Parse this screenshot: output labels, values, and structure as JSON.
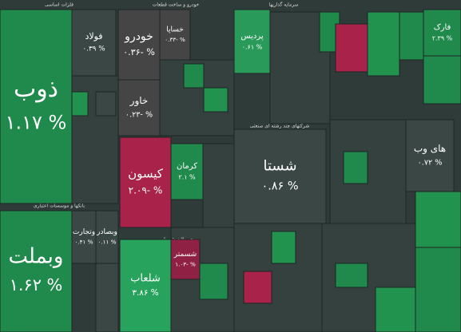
{
  "chart_data": {
    "type": "treemap",
    "groups": [
      "فلزات اساسی",
      "خودرو و ساخت قطعات",
      "بانکها و موسسات اعتباری",
      "شرکتهای چند رشته ای صنعتی",
      "محصولات شیمیایی",
      "سرمایه گذاریها"
    ],
    "tiles": [
      {
        "name": "ذوب",
        "values": 1.17,
        "value_labels": "۱.۱۷ %",
        "color": "#1f8a4c"
      },
      {
        "name": "فولاد",
        "values": 0.39,
        "value_labels": "۰.۳۹ %",
        "color": "#3b4744"
      },
      {
        "name": "وبملت",
        "values": 1.62,
        "value_labels": "۱.۶۲ %",
        "color": "#1f8a4c"
      },
      {
        "name": "وتجارت",
        "values": 0.41,
        "value_labels": "۰.۴۱ %",
        "color": "#3b4744"
      },
      {
        "name": "وبصادر",
        "values": 0.11,
        "value_labels": "۰.۱۱ %",
        "color": "#3b4744"
      },
      {
        "name": "خودرو",
        "values": -0.36,
        "value_labels": "۰.۳۶- %",
        "color": "#454545"
      },
      {
        "name": "خساپا",
        "values": -0.33,
        "value_labels": "۰.۳۳- %",
        "color": "#454545"
      },
      {
        "name": "خاور",
        "values": -0.23,
        "value_labels": "۰.۲۳- %",
        "color": "#454545"
      },
      {
        "name": "کیسون",
        "values": -2.09,
        "value_labels": "۲.۰۹- %",
        "color": "#a8224a"
      },
      {
        "name": "کرمان",
        "values": 2.1,
        "value_labels": "۲.۱ %",
        "color": "#1f8a4c"
      },
      {
        "name": "پردیس",
        "values": 0.61,
        "value_labels": "۰.۶۱ %",
        "color": "#2a9a5a"
      },
      {
        "name": "شستا",
        "values": 0.86,
        "value_labels": "۰.۸۶ %",
        "color": "#3b4744"
      },
      {
        "name": "شلعاب",
        "values": 3.86,
        "value_labels": "۳.۸۶ %",
        "color": "#27a35e"
      },
      {
        "name": "شسمتر",
        "values": -1.03,
        "value_labels": "۱.۰۳- %",
        "color": "#8f2244"
      },
      {
        "name": "فارک",
        "values": 2.39,
        "value_labels": "۲.۳۹ %",
        "color": "#1f8a4c"
      },
      {
        "name": "های وب",
        "values": 0.72,
        "value_labels": "۰.۷۲ %",
        "color": "#3b4744"
      }
    ]
  }
}
